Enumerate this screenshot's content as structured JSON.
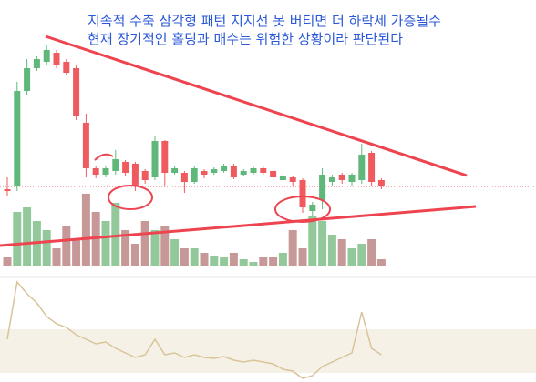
{
  "chart_data": {
    "type": "candlestick",
    "annotations": [
      "지속적 수축 삼각형 패턴 지지선 못 버티면 더 하락세 가증될수",
      "현재 장기적인 홀딩과 매수는 위험한 상황이라 판단된다"
    ],
    "ylim": [
      0,
      300
    ],
    "open": [
      92,
      95,
      200,
      225,
      232,
      242,
      232,
      225,
      165,
      115,
      108,
      112,
      122,
      120,
      112,
      105,
      145,
      110,
      110,
      100,
      112,
      110,
      112,
      118,
      108,
      110,
      115,
      112,
      102,
      105,
      102,
      68,
      80,
      100,
      108,
      100,
      102,
      132,
      102
    ],
    "close": [
      90,
      200,
      225,
      235,
      245,
      228,
      220,
      172,
      115,
      108,
      115,
      125,
      110,
      95,
      102,
      145,
      110,
      115,
      100,
      115,
      108,
      114,
      118,
      105,
      112,
      115,
      110,
      105,
      107,
      100,
      72,
      75,
      108,
      105,
      102,
      108,
      130,
      100,
      95
    ],
    "high": [
      105,
      210,
      235,
      238,
      250,
      245,
      235,
      228,
      175,
      118,
      118,
      135,
      124,
      122,
      114,
      150,
      146,
      118,
      112,
      118,
      114,
      116,
      120,
      120,
      114,
      117,
      117,
      114,
      110,
      107,
      104,
      78,
      115,
      108,
      110,
      110,
      142,
      134,
      104
    ],
    "low": [
      85,
      90,
      195,
      222,
      228,
      225,
      218,
      168,
      105,
      104,
      105,
      108,
      106,
      90,
      98,
      102,
      95,
      108,
      88,
      98,
      104,
      108,
      110,
      103,
      106,
      108,
      108,
      102,
      100,
      96,
      66,
      62,
      70,
      96,
      98,
      96,
      98,
      95,
      92
    ],
    "up_color": "#5fb87a",
    "down_color": "#ef5a5f",
    "volume": {
      "ylim": [
        0,
        100
      ],
      "values": [
        10,
        60,
        65,
        50,
        40,
        20,
        45,
        30,
        80,
        60,
        50,
        70,
        40,
        25,
        50,
        40,
        45,
        30,
        20,
        20,
        15,
        12,
        10,
        15,
        8,
        5,
        10,
        10,
        15,
        40,
        20,
        55,
        50,
        35,
        30,
        20,
        25,
        30,
        8
      ],
      "up_color": "#93c99a",
      "down_color": "#c69898"
    },
    "indicator": {
      "ylim": [
        0,
        110
      ],
      "color": "#d9c49a",
      "values": [
        45,
        108,
        95,
        85,
        70,
        62,
        58,
        50,
        45,
        40,
        42,
        35,
        30,
        25,
        28,
        45,
        28,
        30,
        25,
        28,
        25,
        24,
        26,
        22,
        20,
        22,
        20,
        18,
        12,
        10,
        2,
        5,
        15,
        20,
        25,
        30,
        75,
        35,
        28
      ]
    }
  }
}
